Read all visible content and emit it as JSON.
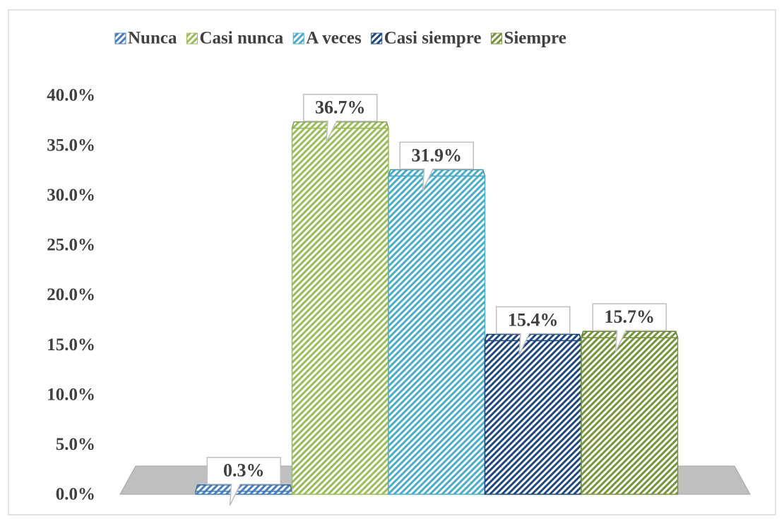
{
  "chart_data": {
    "type": "bar",
    "series": [
      {
        "name": "Nunca",
        "color": "#4a7ebb",
        "values": [
          0.3
        ],
        "value_labels": [
          "0.3%"
        ]
      },
      {
        "name": "Casi nunca",
        "color": "#9bbb59",
        "values": [
          36.7
        ],
        "value_labels": [
          "36.7%"
        ]
      },
      {
        "name": "A veces",
        "color": "#4bacc6",
        "values": [
          31.9
        ],
        "value_labels": [
          "31.9%"
        ]
      },
      {
        "name": "Casi siempre",
        "color": "#1f497d",
        "values": [
          15.4
        ],
        "value_labels": [
          "15.4%"
        ]
      },
      {
        "name": "Siempre",
        "color": "#77933c",
        "values": [
          15.7
        ],
        "value_labels": [
          "15.7%"
        ]
      }
    ],
    "ylim": [
      0,
      40
    ],
    "yticks": [
      {
        "value": 0,
        "label": "0.0%"
      },
      {
        "value": 5,
        "label": "5.0%"
      },
      {
        "value": 10,
        "label": "10.0%"
      },
      {
        "value": 15,
        "label": "15.0%"
      },
      {
        "value": 20,
        "label": "20.0%"
      },
      {
        "value": 25,
        "label": "25.0%"
      },
      {
        "value": 30,
        "label": "30.0%"
      },
      {
        "value": 35,
        "label": "35.0%"
      },
      {
        "value": 40,
        "label": "40.0%"
      }
    ],
    "legend": "top"
  }
}
